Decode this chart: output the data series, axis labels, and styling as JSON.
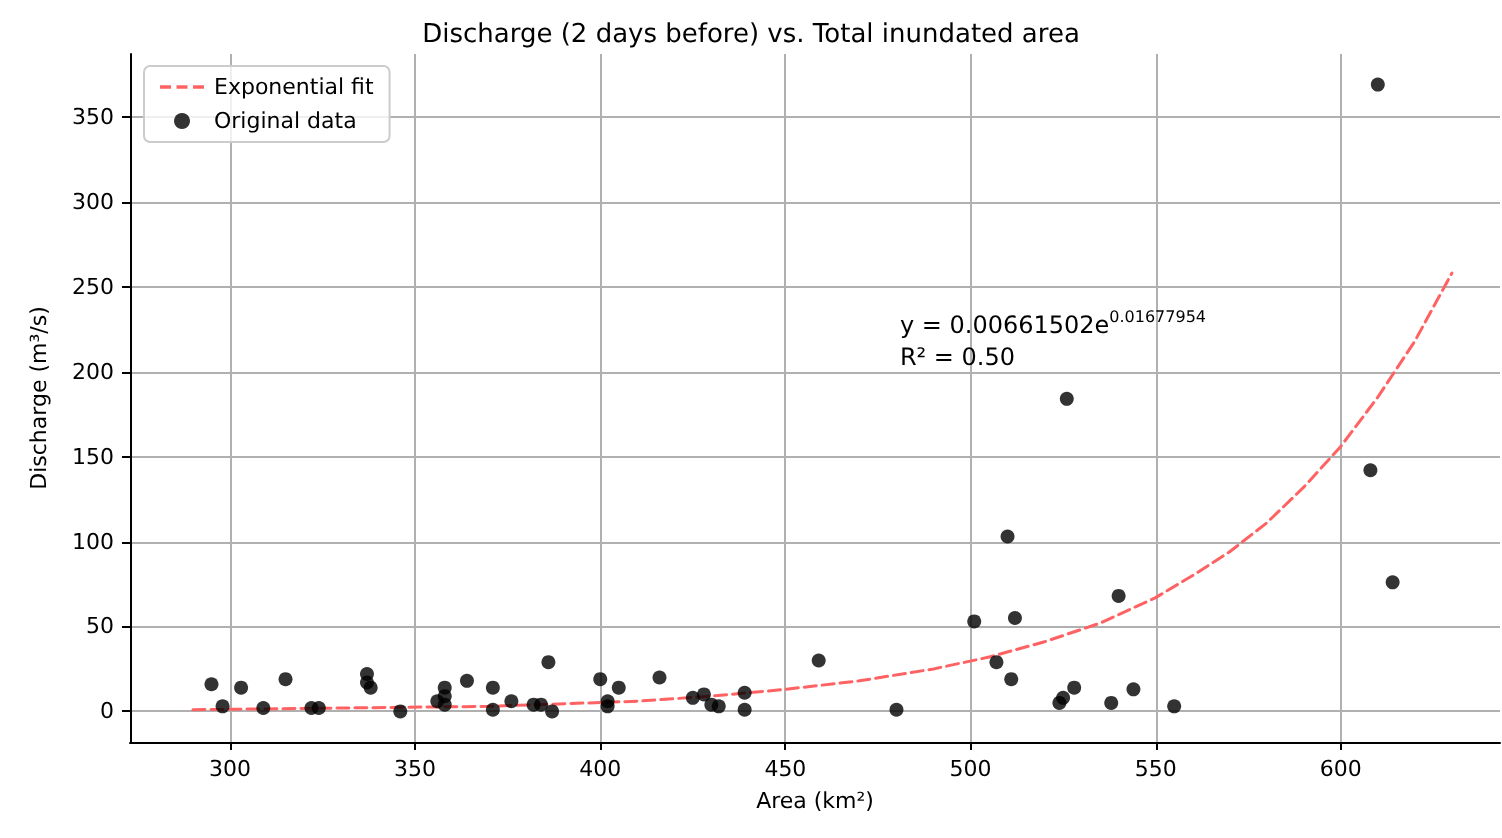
{
  "chart_data": {
    "type": "scatter",
    "title": "Discharge (2 days before) vs. Total inundated area",
    "xlabel": "Area (km²)",
    "ylabel": "Discharge (m³/s)",
    "annotations": [
      "y = 0.00661502e$^{0.01677954}$",
      "R² = 0.50"
    ],
    "series": [
      {
        "name": "Exponential fit",
        "type": "line",
        "color": "#ff6262",
        "line_style": "dashed",
        "marker": "none",
        "x": [
          290,
          330,
          370,
          410,
          430,
          450,
          470,
          490,
          505,
          520,
          535,
          550,
          560,
          570,
          580,
          590,
          600,
          610,
          620,
          630
        ],
        "values": [
          1,
          2,
          3,
          6,
          9,
          13,
          18,
          25,
          32,
          41,
          52,
          67,
          80,
          94,
          111,
          132,
          156,
          185,
          218,
          258
        ]
      },
      {
        "name": "Original data",
        "color": "#000000",
        "marker": "circle",
        "x": [
          295,
          298,
          303,
          309,
          315,
          322,
          324,
          337,
          337,
          338,
          346,
          356,
          358,
          358,
          358,
          364,
          371,
          371,
          376,
          382,
          384,
          386,
          387,
          400,
          402,
          402,
          405,
          416,
          425,
          428,
          430,
          432,
          439,
          439,
          459,
          480,
          501,
          507,
          510,
          511,
          512,
          524,
          525,
          526,
          528,
          538,
          540,
          544,
          555,
          608,
          610,
          614
        ],
        "values": [
          16,
          3,
          14,
          2,
          19,
          2,
          2,
          22,
          17,
          14,
          0,
          6,
          14,
          9,
          4,
          18,
          14,
          1,
          6,
          4,
          4,
          29,
          0,
          19,
          6,
          3,
          14,
          20,
          8,
          10,
          4,
          3,
          11,
          1,
          30,
          1,
          53,
          29,
          103,
          19,
          55,
          5,
          8,
          184,
          14,
          5,
          68,
          13,
          3,
          142,
          369,
          76
        ]
      }
    ],
    "xlim": [
      273,
      643
    ],
    "xticks": [
      300,
      350,
      400,
      450,
      500,
      550,
      600
    ],
    "ylim": [
      -18,
      387
    ],
    "yticks": [
      0,
      50,
      100,
      150,
      200,
      250,
      300,
      350
    ],
    "grid": true,
    "legend": "top left"
  }
}
